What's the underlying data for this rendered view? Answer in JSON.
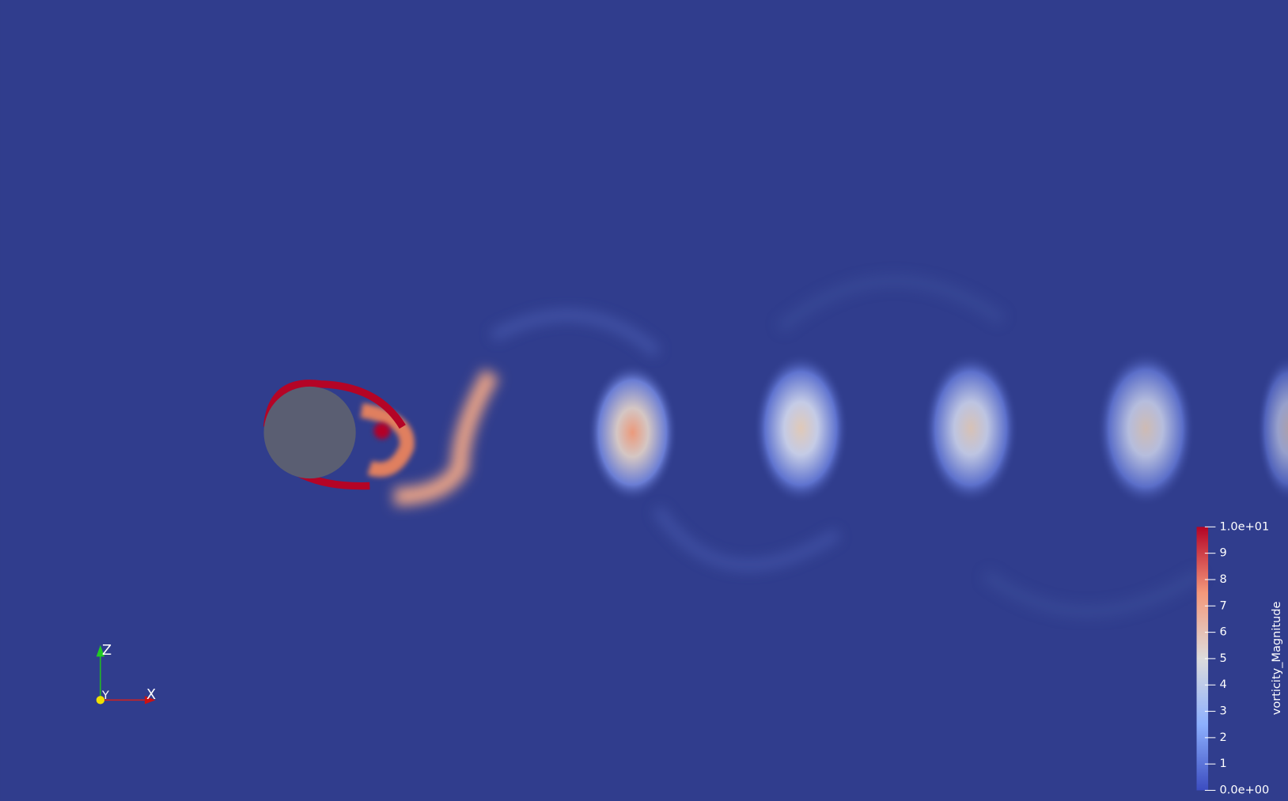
{
  "colorbar": {
    "title": "vorticity_Magnitude",
    "range": [
      0,
      10
    ],
    "ticks": [
      {
        "value": 0,
        "label": "0.0e+00"
      },
      1,
      2,
      3,
      4,
      5,
      6,
      7,
      8,
      9,
      {
        "value": 10,
        "label": "1.0e+01"
      }
    ]
  },
  "axes_widget": {
    "x": "X",
    "y": "Y",
    "z": "Z"
  }
}
